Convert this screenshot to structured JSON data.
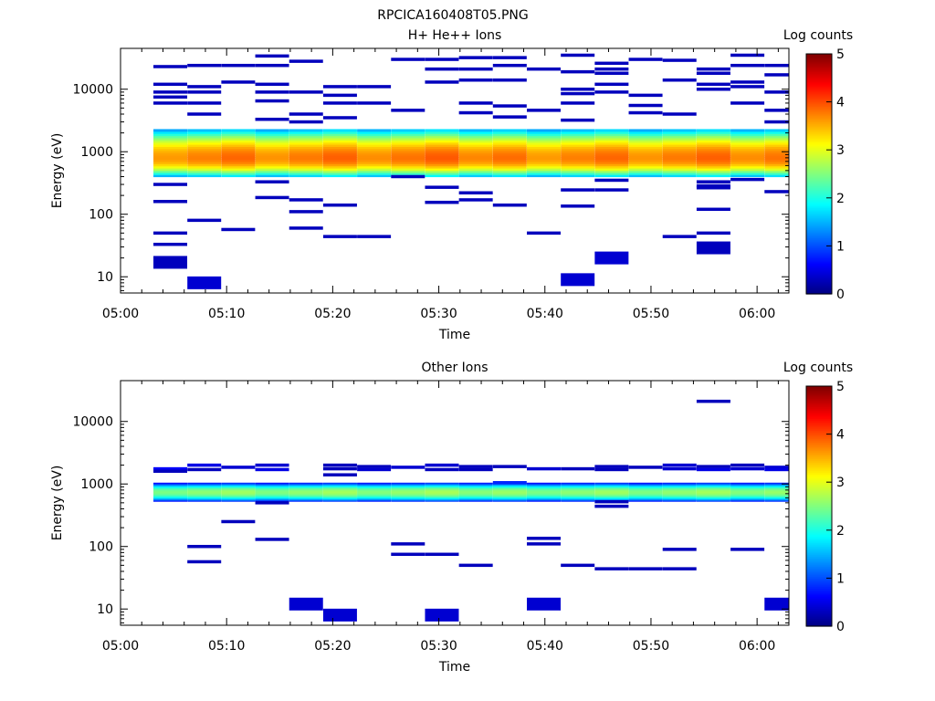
{
  "page_title": "RPCICA160408T05.PNG",
  "chart_data": [
    {
      "type": "heatmap",
      "title": "H+ He++ Ions",
      "xlabel": "Time",
      "ylabel": "Energy (eV)",
      "x_ticks": [
        "05:00",
        "05:10",
        "05:20",
        "05:30",
        "05:40",
        "05:50",
        "06:00"
      ],
      "y_ticks": [
        "10",
        "100",
        "1000",
        "10000"
      ],
      "y_scale": "log",
      "y_range": [
        5.5,
        45000
      ],
      "x_range_minutes": [
        0,
        63
      ],
      "colorbar": {
        "label": "Log counts",
        "ticks": [
          "0",
          "1",
          "2",
          "3",
          "4",
          "5"
        ],
        "range": [
          0,
          5
        ],
        "colormap": "jet"
      },
      "time_bins_minutes": [
        3.1,
        6.3,
        9.5,
        12.7,
        15.9,
        19.1,
        22.3,
        25.5,
        28.7,
        31.9,
        35.1,
        38.3,
        41.5,
        44.7,
        47.9,
        51.1,
        54.3,
        57.5,
        60.7
      ],
      "core_band": {
        "energy_min": 400,
        "energy_max": 2300,
        "peak_energy": 800,
        "peak_log_counts": 3.8
      },
      "sparse_points": [
        {
          "t": 0,
          "e": 23000,
          "v": 0.3
        },
        {
          "t": 0,
          "e": 12000,
          "v": 0.3
        },
        {
          "t": 0,
          "e": 9000,
          "v": 0.3
        },
        {
          "t": 0,
          "e": 7500,
          "v": 0.3
        },
        {
          "t": 0,
          "e": 6000,
          "v": 0.3
        },
        {
          "t": 0,
          "e": 300,
          "v": 0.3
        },
        {
          "t": 0,
          "e": 160,
          "v": 0.3
        },
        {
          "t": 0,
          "e": 50,
          "v": 0.3
        },
        {
          "t": 0,
          "e": 33,
          "v": 0.3
        },
        {
          "t": 0,
          "e": 17,
          "v": 0.3
        },
        {
          "t": 1,
          "e": 24000,
          "v": 0.3
        },
        {
          "t": 1,
          "e": 11000,
          "v": 0.3
        },
        {
          "t": 1,
          "e": 9000,
          "v": 0.3
        },
        {
          "t": 1,
          "e": 6000,
          "v": 0.3
        },
        {
          "t": 1,
          "e": 4000,
          "v": 0.3
        },
        {
          "t": 1,
          "e": 80,
          "v": 0.3
        },
        {
          "t": 1,
          "e": 8,
          "v": 0.4
        },
        {
          "t": 2,
          "e": 24000,
          "v": 0.3
        },
        {
          "t": 2,
          "e": 13000,
          "v": 0.3
        },
        {
          "t": 2,
          "e": 57,
          "v": 0.3
        },
        {
          "t": 3,
          "e": 34000,
          "v": 0.3
        },
        {
          "t": 3,
          "e": 24000,
          "v": 0.3
        },
        {
          "t": 3,
          "e": 12000,
          "v": 0.3
        },
        {
          "t": 3,
          "e": 9000,
          "v": 0.3
        },
        {
          "t": 3,
          "e": 6500,
          "v": 0.3
        },
        {
          "t": 3,
          "e": 3300,
          "v": 0.3
        },
        {
          "t": 3,
          "e": 330,
          "v": 0.3
        },
        {
          "t": 3,
          "e": 185,
          "v": 0.3
        },
        {
          "t": 4,
          "e": 28000,
          "v": 0.3
        },
        {
          "t": 4,
          "e": 9000,
          "v": 0.3
        },
        {
          "t": 4,
          "e": 4000,
          "v": 0.3
        },
        {
          "t": 4,
          "e": 3000,
          "v": 0.3
        },
        {
          "t": 4,
          "e": 170,
          "v": 0.3
        },
        {
          "t": 4,
          "e": 110,
          "v": 0.3
        },
        {
          "t": 4,
          "e": 60,
          "v": 0.3
        },
        {
          "t": 5,
          "e": 11000,
          "v": 0.3
        },
        {
          "t": 5,
          "e": 8000,
          "v": 0.3
        },
        {
          "t": 5,
          "e": 6000,
          "v": 0.3
        },
        {
          "t": 5,
          "e": 3500,
          "v": 0.3
        },
        {
          "t": 5,
          "e": 140,
          "v": 0.3
        },
        {
          "t": 5,
          "e": 44,
          "v": 0.3
        },
        {
          "t": 6,
          "e": 11000,
          "v": 0.3
        },
        {
          "t": 6,
          "e": 6000,
          "v": 0.3
        },
        {
          "t": 6,
          "e": 44,
          "v": 0.3
        },
        {
          "t": 7,
          "e": 30000,
          "v": 0.3
        },
        {
          "t": 7,
          "e": 4600,
          "v": 0.3
        },
        {
          "t": 7,
          "e": 400,
          "v": 0.3
        },
        {
          "t": 8,
          "e": 30000,
          "v": 0.3
        },
        {
          "t": 8,
          "e": 21000,
          "v": 0.3
        },
        {
          "t": 8,
          "e": 13000,
          "v": 0.3
        },
        {
          "t": 8,
          "e": 270,
          "v": 0.3
        },
        {
          "t": 8,
          "e": 155,
          "v": 0.3
        },
        {
          "t": 9,
          "e": 32000,
          "v": 0.3
        },
        {
          "t": 9,
          "e": 21000,
          "v": 0.3
        },
        {
          "t": 9,
          "e": 14000,
          "v": 0.3
        },
        {
          "t": 9,
          "e": 6000,
          "v": 0.3
        },
        {
          "t": 9,
          "e": 4200,
          "v": 0.3
        },
        {
          "t": 9,
          "e": 220,
          "v": 0.3
        },
        {
          "t": 9,
          "e": 170,
          "v": 0.3
        },
        {
          "t": 10,
          "e": 32000,
          "v": 0.3
        },
        {
          "t": 10,
          "e": 24000,
          "v": 0.3
        },
        {
          "t": 10,
          "e": 14000,
          "v": 0.3
        },
        {
          "t": 10,
          "e": 5400,
          "v": 0.3
        },
        {
          "t": 10,
          "e": 3600,
          "v": 0.3
        },
        {
          "t": 10,
          "e": 140,
          "v": 0.3
        },
        {
          "t": 11,
          "e": 21000,
          "v": 0.3
        },
        {
          "t": 11,
          "e": 4600,
          "v": 0.3
        },
        {
          "t": 11,
          "e": 50,
          "v": 0.3
        },
        {
          "t": 12,
          "e": 35000,
          "v": 0.3
        },
        {
          "t": 12,
          "e": 19000,
          "v": 0.3
        },
        {
          "t": 12,
          "e": 10000,
          "v": 0.3
        },
        {
          "t": 12,
          "e": 8500,
          "v": 0.3
        },
        {
          "t": 12,
          "e": 6000,
          "v": 0.3
        },
        {
          "t": 12,
          "e": 3200,
          "v": 0.3
        },
        {
          "t": 12,
          "e": 245,
          "v": 0.3
        },
        {
          "t": 12,
          "e": 135,
          "v": 0.3
        },
        {
          "t": 12,
          "e": 9,
          "v": 0.4
        },
        {
          "t": 13,
          "e": 26000,
          "v": 0.3
        },
        {
          "t": 13,
          "e": 21000,
          "v": 0.3
        },
        {
          "t": 13,
          "e": 18000,
          "v": 0.3
        },
        {
          "t": 13,
          "e": 12000,
          "v": 0.3
        },
        {
          "t": 13,
          "e": 9000,
          "v": 0.3
        },
        {
          "t": 13,
          "e": 350,
          "v": 0.3
        },
        {
          "t": 13,
          "e": 245,
          "v": 0.3
        },
        {
          "t": 13,
          "e": 20,
          "v": 0.4
        },
        {
          "t": 14,
          "e": 30000,
          "v": 0.3
        },
        {
          "t": 14,
          "e": 8000,
          "v": 0.3
        },
        {
          "t": 14,
          "e": 5500,
          "v": 0.3
        },
        {
          "t": 14,
          "e": 4200,
          "v": 0.3
        },
        {
          "t": 15,
          "e": 29000,
          "v": 0.3
        },
        {
          "t": 15,
          "e": 14000,
          "v": 0.3
        },
        {
          "t": 15,
          "e": 4000,
          "v": 0.3
        },
        {
          "t": 15,
          "e": 44,
          "v": 0.3
        },
        {
          "t": 16,
          "e": 21000,
          "v": 0.3
        },
        {
          "t": 16,
          "e": 18000,
          "v": 0.3
        },
        {
          "t": 16,
          "e": 12000,
          "v": 0.3
        },
        {
          "t": 16,
          "e": 10000,
          "v": 0.3
        },
        {
          "t": 16,
          "e": 330,
          "v": 0.3
        },
        {
          "t": 16,
          "e": 285,
          "v": 0.3
        },
        {
          "t": 16,
          "e": 265,
          "v": 0.3
        },
        {
          "t": 16,
          "e": 120,
          "v": 0.3
        },
        {
          "t": 16,
          "e": 50,
          "v": 0.3
        },
        {
          "t": 16,
          "e": 29,
          "v": 0.3
        },
        {
          "t": 17,
          "e": 35000,
          "v": 0.3
        },
        {
          "t": 17,
          "e": 24000,
          "v": 0.3
        },
        {
          "t": 17,
          "e": 13000,
          "v": 0.3
        },
        {
          "t": 17,
          "e": 11000,
          "v": 0.3
        },
        {
          "t": 17,
          "e": 6000,
          "v": 0.3
        },
        {
          "t": 17,
          "e": 360,
          "v": 0.3
        },
        {
          "t": 18,
          "e": 24000,
          "v": 0.3
        },
        {
          "t": 18,
          "e": 17000,
          "v": 0.3
        },
        {
          "t": 18,
          "e": 9000,
          "v": 0.3
        },
        {
          "t": 18,
          "e": 4600,
          "v": 0.3
        },
        {
          "t": 18,
          "e": 3000,
          "v": 0.3
        },
        {
          "t": 18,
          "e": 230,
          "v": 0.3
        }
      ]
    },
    {
      "type": "heatmap",
      "title": "Other Ions",
      "xlabel": "Time",
      "ylabel": "Energy (eV)",
      "x_ticks": [
        "05:00",
        "05:10",
        "05:20",
        "05:30",
        "05:40",
        "05:50",
        "06:00"
      ],
      "y_ticks": [
        "10",
        "100",
        "1000",
        "10000"
      ],
      "y_scale": "log",
      "y_range": [
        5.5,
        45000
      ],
      "colorbar": {
        "label": "Log counts",
        "ticks": [
          "0",
          "1",
          "2",
          "3",
          "4",
          "5"
        ],
        "range": [
          0,
          5
        ],
        "colormap": "jet"
      },
      "core_band": {
        "energy_min": 530,
        "energy_max": 1050,
        "peak_energy": 750,
        "peak_log_counts": 2.6
      },
      "sparse_points": [
        {
          "t": 0,
          "e": 1750,
          "v": 0.6
        },
        {
          "t": 0,
          "e": 1600,
          "v": 0.3
        },
        {
          "t": 1,
          "e": 2000,
          "v": 0.5
        },
        {
          "t": 1,
          "e": 1700,
          "v": 0.3
        },
        {
          "t": 1,
          "e": 100,
          "v": 0.3
        },
        {
          "t": 1,
          "e": 57,
          "v": 0.3
        },
        {
          "t": 2,
          "e": 1850,
          "v": 0.4
        },
        {
          "t": 2,
          "e": 250,
          "v": 0.3
        },
        {
          "t": 3,
          "e": 2000,
          "v": 0.4
        },
        {
          "t": 3,
          "e": 1700,
          "v": 0.5
        },
        {
          "t": 3,
          "e": 500,
          "v": 0.3
        },
        {
          "t": 3,
          "e": 130,
          "v": 0.3
        },
        {
          "t": 4,
          "e": 12,
          "v": 0.4
        },
        {
          "t": 5,
          "e": 2000,
          "v": 0.3
        },
        {
          "t": 5,
          "e": 1750,
          "v": 0.3
        },
        {
          "t": 5,
          "e": 1400,
          "v": 0.3
        },
        {
          "t": 5,
          "e": 8,
          "v": 0.4
        },
        {
          "t": 6,
          "e": 1900,
          "v": 0.3
        },
        {
          "t": 6,
          "e": 1700,
          "v": 0.4
        },
        {
          "t": 7,
          "e": 1850,
          "v": 0.4
        },
        {
          "t": 7,
          "e": 110,
          "v": 0.3
        },
        {
          "t": 7,
          "e": 75,
          "v": 0.3
        },
        {
          "t": 8,
          "e": 2000,
          "v": 0.4
        },
        {
          "t": 8,
          "e": 1700,
          "v": 0.3
        },
        {
          "t": 8,
          "e": 75,
          "v": 0.3
        },
        {
          "t": 8,
          "e": 8,
          "v": 0.4
        },
        {
          "t": 9,
          "e": 1900,
          "v": 0.3
        },
        {
          "t": 9,
          "e": 1700,
          "v": 0.3
        },
        {
          "t": 9,
          "e": 50,
          "v": 0.3
        },
        {
          "t": 10,
          "e": 1900,
          "v": 0.3
        },
        {
          "t": 10,
          "e": 1050,
          "v": 0.8
        },
        {
          "t": 11,
          "e": 1750,
          "v": 0.4
        },
        {
          "t": 11,
          "e": 135,
          "v": 0.3
        },
        {
          "t": 11,
          "e": 110,
          "v": 0.3
        },
        {
          "t": 11,
          "e": 12,
          "v": 0.4
        },
        {
          "t": 12,
          "e": 1750,
          "v": 0.3
        },
        {
          "t": 12,
          "e": 50,
          "v": 0.3
        },
        {
          "t": 13,
          "e": 1900,
          "v": 0.3
        },
        {
          "t": 13,
          "e": 1700,
          "v": 0.3
        },
        {
          "t": 13,
          "e": 520,
          "v": 0.3
        },
        {
          "t": 13,
          "e": 440,
          "v": 0.3
        },
        {
          "t": 13,
          "e": 44,
          "v": 0.3
        },
        {
          "t": 14,
          "e": 1850,
          "v": 0.3
        },
        {
          "t": 14,
          "e": 44,
          "v": 0.3
        },
        {
          "t": 15,
          "e": 2000,
          "v": 0.4
        },
        {
          "t": 15,
          "e": 1750,
          "v": 0.4
        },
        {
          "t": 15,
          "e": 90,
          "v": 0.3
        },
        {
          "t": 15,
          "e": 44,
          "v": 0.3
        },
        {
          "t": 16,
          "e": 21000,
          "v": 0.3
        },
        {
          "t": 16,
          "e": 1900,
          "v": 0.3
        },
        {
          "t": 16,
          "e": 1700,
          "v": 0.5
        },
        {
          "t": 17,
          "e": 2000,
          "v": 0.3
        },
        {
          "t": 17,
          "e": 1750,
          "v": 0.4
        },
        {
          "t": 17,
          "e": 90,
          "v": 0.3
        },
        {
          "t": 18,
          "e": 1850,
          "v": 0.4
        },
        {
          "t": 18,
          "e": 1700,
          "v": 0.5
        },
        {
          "t": 18,
          "e": 12,
          "v": 0.4
        }
      ]
    }
  ]
}
